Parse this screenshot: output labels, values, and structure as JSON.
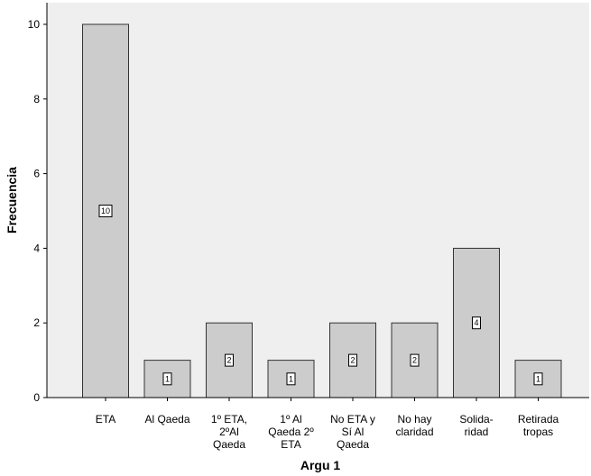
{
  "chart_data": {
    "type": "bar",
    "categories": [
      [
        "ETA"
      ],
      [
        "Al Qaeda"
      ],
      [
        "1º ETA,",
        "2ºAl",
        "Qaeda"
      ],
      [
        "1º Al",
        "Qaeda 2º",
        "ETA"
      ],
      [
        "No ETA y",
        "Sí Al",
        "Qaeda"
      ],
      [
        "No hay",
        "claridad"
      ],
      [
        "Solida-",
        "ridad"
      ],
      [
        "Retirada",
        "tropas"
      ]
    ],
    "values": [
      10,
      1,
      2,
      1,
      2,
      2,
      4,
      1
    ],
    "data_labels": [
      "10",
      "1",
      "2",
      "1",
      "2",
      "2",
      "4",
      "1"
    ],
    "xlabel": "Argu 1",
    "ylabel": "Frecuencia",
    "ylim": [
      0,
      10
    ],
    "yticks": [
      0,
      2,
      4,
      6,
      8,
      10
    ],
    "grid": false,
    "colors": {
      "plot_background": "#efefef",
      "bar_fill": "#cccccc",
      "bar_stroke": "#333333",
      "axis": "#000000"
    }
  }
}
